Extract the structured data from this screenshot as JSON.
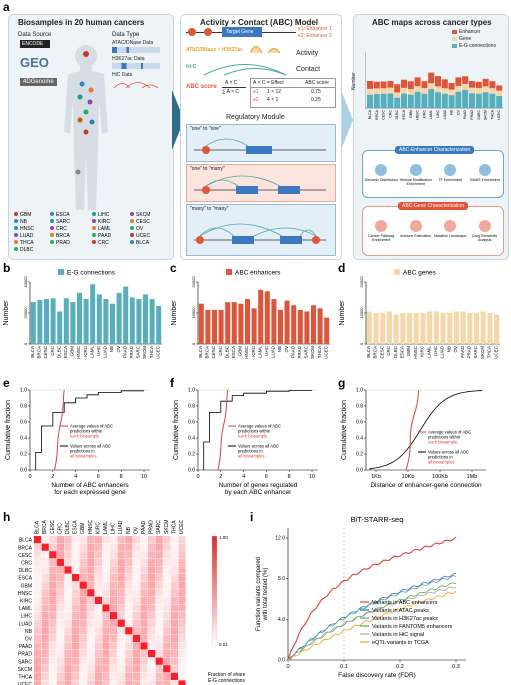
{
  "panel_a": {
    "label": "a",
    "left": {
      "title": "Biosamples in 20 human cancers",
      "data_source_label": "Data Source",
      "data_type_label": "Data Type",
      "source_logos": [
        "ENCODE",
        "GEO",
        "4DGenome"
      ],
      "data_types": [
        "ATAC/DNase Data",
        "H3K27ac Data",
        "HiC Data"
      ],
      "cancers_col1": [
        "GBM",
        "NB",
        "HNSC",
        "LUAD",
        "THCA",
        "DLBC"
      ],
      "cancers_col2": [
        "ESCA",
        "SARC",
        "CRC",
        "BRCA",
        "PRAD"
      ],
      "cancers_col3": [
        "LIHC",
        "KIRC",
        "LAML",
        "PAAD",
        "CRC"
      ],
      "cancers_col4": [
        "SKCM",
        "CESC",
        "OV",
        "UCEC",
        "BLCA"
      ]
    },
    "middle": {
      "title": "Activity × Contact (ABC) Model",
      "target_gene": "Target Gene",
      "e1": "e1: Enhancer 1",
      "e2": "e2: Enhancer 2",
      "activity_formula": "ATAC/DNase + H3K27ac",
      "activity_label": "Activity",
      "contact_source": "Hi-C",
      "contact_label": "Contact",
      "score_label": "ABC score",
      "score_formula_num": "A × C",
      "score_formula_den": "∑ A × C",
      "table_header": [
        "A × C = Effect",
        "ABC score"
      ],
      "table_rows": [
        [
          "e1",
          "1 × 12",
          "0.75"
        ],
        [
          "e2",
          "4 × 1",
          "0.25"
        ]
      ],
      "regulatory_title": "Regulatory Module",
      "modules": [
        "\"one\" to \"one\"",
        "\"one\" to \"many\"",
        "\"many\" to \"many\""
      ]
    },
    "right": {
      "title": "ABC maps across cancer types",
      "legend": [
        "Enhancer",
        "Gene",
        "E-G connections"
      ],
      "y_label": "Number",
      "enh_char_title": "ABC-Enhancer Characterization",
      "enh_items": [
        "Genomic Distribution",
        "Histone Modification Enrichment",
        "TF Enrichment",
        "GWAS Enrichment"
      ],
      "gene_char_title": "ABC-Gene Characterization",
      "gene_items": [
        "Cancer Pathway Enrichment",
        "Immune Estimation",
        "Mutation Landscape",
        "Drug Sensitivity Analysis"
      ]
    }
  },
  "cancer_types": [
    "BLCA",
    "BRCA",
    "CESC",
    "CRC",
    "DLBC",
    "ESCA",
    "GBM",
    "HNSC",
    "KIRC",
    "LAML",
    "LIHC",
    "LUAD",
    "NB",
    "OV",
    "PAAD",
    "PRAD",
    "SARC",
    "SKCM",
    "THCA",
    "UCEC"
  ],
  "panel_b": {
    "label": "b",
    "y_label": "Number",
    "legend": "E-G connections",
    "yticks": [
      "0",
      "20000",
      "40000"
    ],
    "ymax": 40000,
    "color": "#57afbe",
    "values": [
      27000,
      28500,
      29000,
      29500,
      21000,
      29500,
      27000,
      33000,
      29000,
      38500,
      32000,
      29000,
      26000,
      33000,
      37000,
      30000,
      29000,
      32000,
      29000,
      24500
    ]
  },
  "panel_c": {
    "label": "c",
    "y_label": "Number",
    "legend": "ABC enhancers",
    "yticks": [
      "0",
      "10000",
      "20000"
    ],
    "ymax": 20000,
    "color": "#e25438",
    "values": [
      13000,
      11000,
      11000,
      11000,
      13500,
      13500,
      13000,
      14500,
      11500,
      17500,
      17000,
      14500,
      11000,
      14000,
      12500,
      11000,
      10500,
      12500,
      11500,
      8500
    ]
  },
  "panel_d": {
    "label": "d",
    "y_label": "Number",
    "legend": "ABC genes",
    "yticks": [
      "0",
      "10000",
      "20000"
    ],
    "ymax": 20000,
    "color": "#f7d7a8",
    "values": [
      10500,
      10000,
      10000,
      10500,
      9500,
      10000,
      10000,
      10000,
      10000,
      10500,
      10500,
      10000,
      10000,
      10500,
      10500,
      10000,
      10000,
      10500,
      10000,
      9500
    ]
  },
  "panel_e": {
    "label": "e",
    "y_label": "Cumulative fraction",
    "x_label_lines": [
      "Number of ABC enhancers",
      "for each expressed gene"
    ],
    "xticks": [
      "0",
      "2",
      "4",
      "6",
      "8",
      "10"
    ],
    "yticks": [
      "0.0",
      "0.2",
      "0.4",
      "0.6",
      "0.8",
      "1.0"
    ],
    "legend_red": [
      "Average values of ABC",
      "predictions within",
      "each biosample"
    ],
    "legend_black": [
      "Values across all ABC",
      "predictions in",
      "all biosamples"
    ]
  },
  "panel_f": {
    "label": "f",
    "y_label": "Cumulative fraction",
    "x_label_lines": [
      "Number of genes regulated",
      "by each ABC enhancer"
    ],
    "xticks": [
      "0",
      "2",
      "4",
      "6",
      "8",
      "10"
    ],
    "yticks": [
      "0.0",
      "0.2",
      "0.4",
      "0.6",
      "0.8",
      "1.0"
    ],
    "legend_red": [
      "Average values of ABC",
      "predictions within",
      "each biosample"
    ],
    "legend_black": [
      "Values across all ABC",
      "predictions in",
      "all biosamples"
    ]
  },
  "panel_g": {
    "label": "g",
    "y_label": "Cumulative fraction",
    "x_label": "Distance of enhancer-gene connection",
    "xticks": [
      "1Kb",
      "10Kb",
      "100Kb",
      "1Mb"
    ],
    "yticks": [
      "0.0",
      "0.2",
      "0.4",
      "0.6",
      "0.8",
      "1.0"
    ],
    "legend_red": [
      "Average values of ABC",
      "predictions within",
      "each biosample"
    ],
    "legend_black": [
      "Values across all ABC",
      "predictions in",
      "all biosamples"
    ]
  },
  "panel_h": {
    "label": "h",
    "scale_ticks": [
      "1.00",
      "0.01"
    ],
    "scale_caption": [
      "Fraction of shared",
      "E-G connections"
    ]
  },
  "panel_i": {
    "label": "i",
    "title": "BiT-STARR-seq",
    "y_label_lines": [
      "Function variants compared",
      "with total tested (%)"
    ],
    "x_label": "False discovery rate (FDR)",
    "xticks": [
      "0",
      "0.1",
      "0.2",
      "0.3"
    ],
    "yticks": [
      "0.0",
      "4.0",
      "8.0",
      "12.0"
    ],
    "legend": [
      "Variants in  ABC enhancers",
      "Variants in ATAC peaks",
      "Variants in H3K27ac peaks",
      "Variants in FANTOM5 enhancers",
      "Variants in HiC signal",
      "eQTL variants in TCGA"
    ],
    "colors": [
      "#e0403a",
      "#3d6fb5",
      "#4aa9a0",
      "#55b24b",
      "#a9a9a9",
      "#e8a324"
    ]
  }
}
